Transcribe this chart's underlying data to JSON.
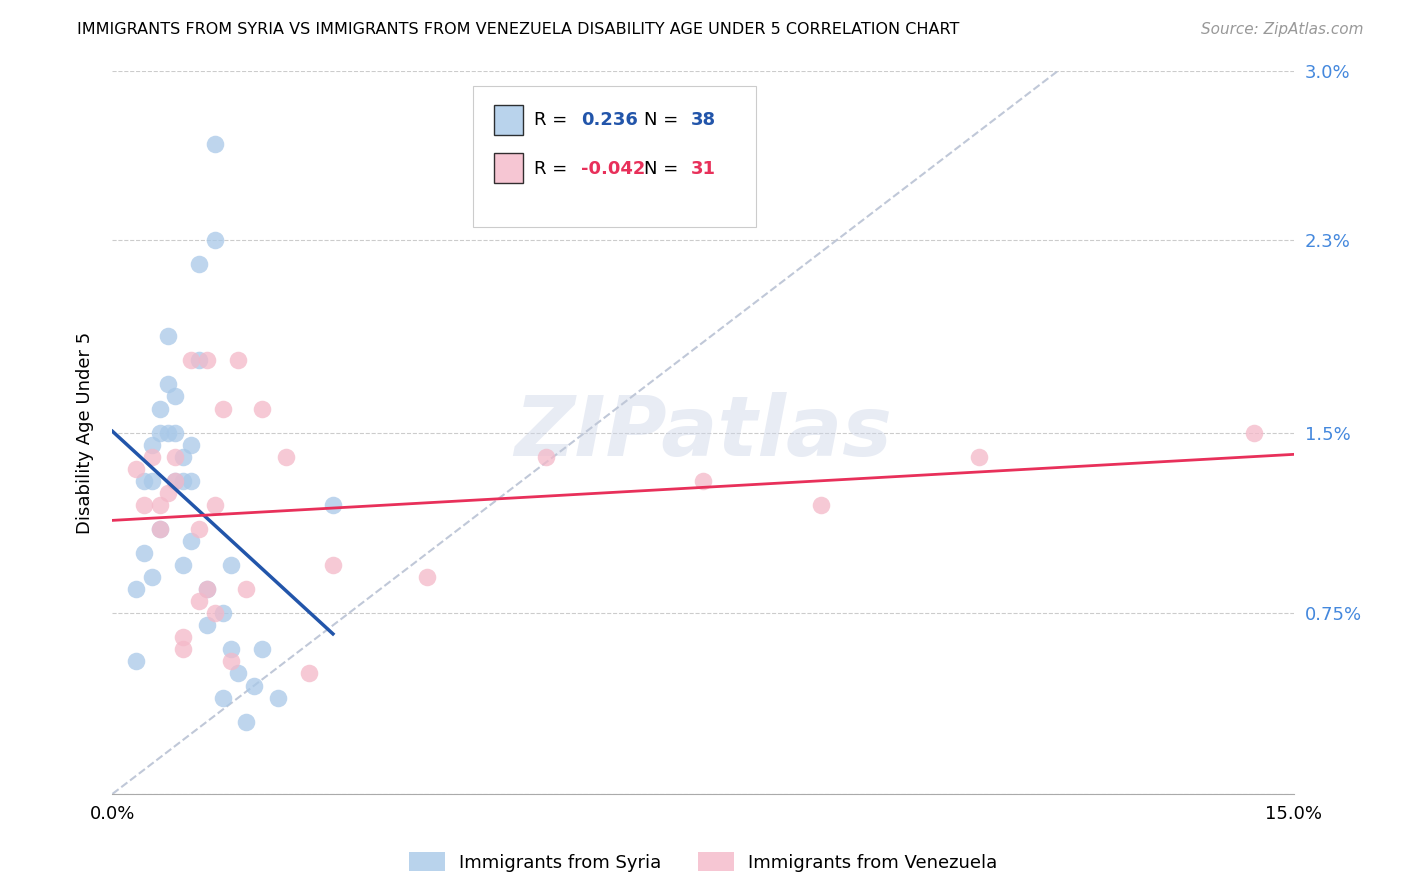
{
  "title": "IMMIGRANTS FROM SYRIA VS IMMIGRANTS FROM VENEZUELA DISABILITY AGE UNDER 5 CORRELATION CHART",
  "source": "Source: ZipAtlas.com",
  "ylabel": "Disability Age Under 5",
  "xlim": [
    0.0,
    0.15
  ],
  "ylim": [
    0.0,
    0.03
  ],
  "syria_color": "#a8c8e8",
  "venezuela_color": "#f4b8c8",
  "syria_line_color": "#2255aa",
  "venezuela_line_color": "#e8305a",
  "diagonal_color": "#c0c8d8",
  "watermark": "ZIPatlas",
  "legend_r_syria": "0.236",
  "legend_n_syria": "38",
  "legend_r_venezuela": "-0.042",
  "legend_n_venezuela": "31",
  "syria_x": [
    0.003,
    0.003,
    0.004,
    0.004,
    0.005,
    0.005,
    0.005,
    0.006,
    0.006,
    0.006,
    0.007,
    0.007,
    0.007,
    0.008,
    0.008,
    0.008,
    0.009,
    0.009,
    0.009,
    0.01,
    0.01,
    0.01,
    0.011,
    0.011,
    0.012,
    0.012,
    0.013,
    0.013,
    0.014,
    0.014,
    0.015,
    0.015,
    0.016,
    0.017,
    0.018,
    0.019,
    0.021,
    0.028
  ],
  "syria_y": [
    0.0085,
    0.0055,
    0.013,
    0.01,
    0.0145,
    0.013,
    0.009,
    0.016,
    0.015,
    0.011,
    0.019,
    0.017,
    0.015,
    0.0165,
    0.015,
    0.013,
    0.014,
    0.013,
    0.0095,
    0.0145,
    0.013,
    0.0105,
    0.022,
    0.018,
    0.0085,
    0.007,
    0.023,
    0.027,
    0.0075,
    0.004,
    0.0095,
    0.006,
    0.005,
    0.003,
    0.0045,
    0.006,
    0.004,
    0.012
  ],
  "venezuela_x": [
    0.003,
    0.004,
    0.005,
    0.006,
    0.006,
    0.007,
    0.008,
    0.008,
    0.009,
    0.009,
    0.01,
    0.011,
    0.011,
    0.012,
    0.012,
    0.013,
    0.013,
    0.014,
    0.015,
    0.016,
    0.017,
    0.019,
    0.022,
    0.025,
    0.028,
    0.04,
    0.055,
    0.075,
    0.09,
    0.11,
    0.145
  ],
  "venezuela_y": [
    0.0135,
    0.012,
    0.014,
    0.012,
    0.011,
    0.0125,
    0.014,
    0.013,
    0.006,
    0.0065,
    0.018,
    0.011,
    0.008,
    0.018,
    0.0085,
    0.0075,
    0.012,
    0.016,
    0.0055,
    0.018,
    0.0085,
    0.016,
    0.014,
    0.005,
    0.0095,
    0.009,
    0.014,
    0.013,
    0.012,
    0.014,
    0.015
  ]
}
